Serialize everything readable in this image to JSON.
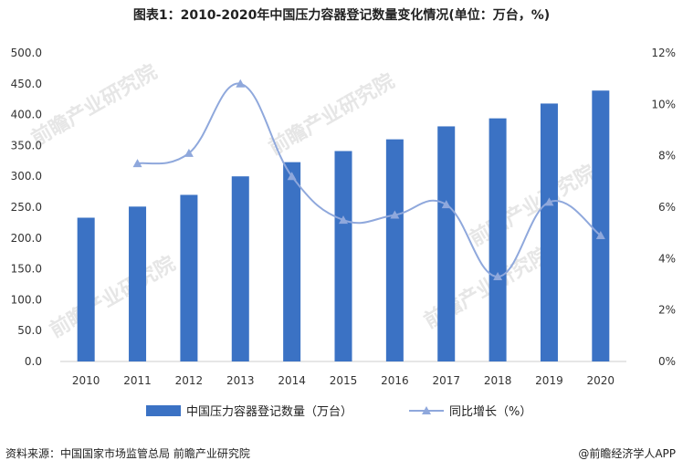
{
  "title": "图表1：2010-2020年中国压力容器登记数量变化情况(单位：万台，%)",
  "source": "资料来源：中国国家市场监管总局 前瞻产业研究院",
  "credit": "@前瞻经济学人APP",
  "watermark": "前瞻产业研究院",
  "chart_data": {
    "type": "bar",
    "categories": [
      "2010",
      "2011",
      "2012",
      "2013",
      "2014",
      "2015",
      "2016",
      "2017",
      "2018",
      "2019",
      "2020"
    ],
    "series": [
      {
        "name": "中国压力容器登记数量（万台）",
        "type": "bar",
        "axis": "left",
        "color": "#3B72C4",
        "values": [
          233,
          251,
          270,
          300,
          323,
          341,
          360,
          381,
          394,
          418,
          439
        ]
      },
      {
        "name": "同比增长（%）",
        "type": "line",
        "axis": "right",
        "color": "#8FA8DC",
        "values": [
          null,
          7.7,
          8.1,
          10.8,
          7.2,
          5.5,
          5.7,
          6.1,
          3.3,
          6.2,
          4.9
        ]
      }
    ],
    "left_axis": {
      "ylim": [
        0,
        500
      ],
      "ticks": [
        "0.0",
        "50.0",
        "100.0",
        "150.0",
        "200.0",
        "250.0",
        "300.0",
        "350.0",
        "400.0",
        "450.0",
        "500.0"
      ]
    },
    "right_axis": {
      "ylim": [
        0,
        12
      ],
      "ticks": [
        "0%",
        "2%",
        "4%",
        "6%",
        "8%",
        "10%",
        "12%"
      ]
    },
    "grid": false,
    "legend_position": "bottom"
  }
}
